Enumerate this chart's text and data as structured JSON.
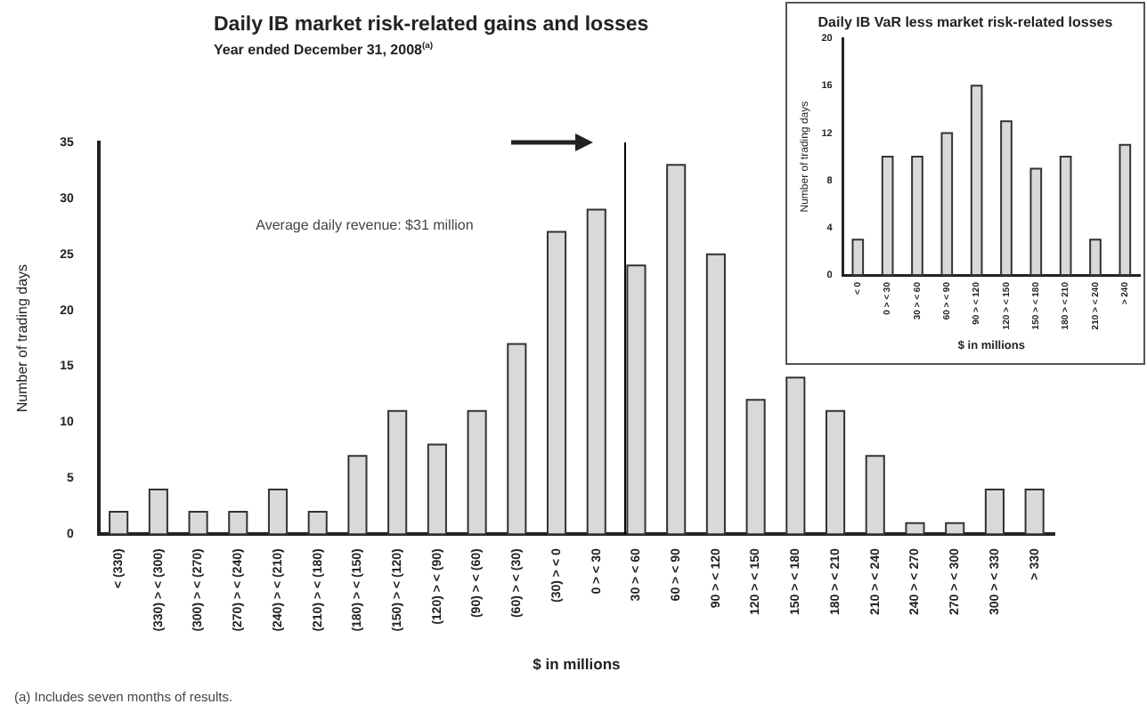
{
  "chart_data": [
    {
      "type": "bar",
      "title": "Daily IB market risk-related gains and losses",
      "subtitle": "Year ended December 31, 2008$^{(a)}$",
      "xlabel": "$ in millions",
      "ylabel": "Number of trading days",
      "categories": [
        "< (330)",
        "(330) > < (300)",
        "(300) > < (270)",
        "(270) > < (240)",
        "(240) > < (210)",
        "(210) > < (180)",
        "(180) > < (150)",
        "(150) > < (120)",
        "(120) > < (90)",
        "(90) > < (60)",
        "(60) > < (30)",
        "(30) > < 0",
        "0 > < 30",
        "30 > < 60",
        "60 > < 90",
        "90 > < 120",
        "120 > < 150",
        "150 > < 180",
        "180 > < 210",
        "210 > < 240",
        "240 > < 270",
        "270 > < 300",
        "300 > < 330",
        "> 330"
      ],
      "values": [
        2,
        4,
        2,
        2,
        4,
        2,
        7,
        11,
        8,
        11,
        17,
        27,
        29,
        24,
        33,
        25,
        12,
        14,
        11,
        7,
        1,
        1,
        4,
        4
      ],
      "color": "#d9d9d9",
      "ylim": [
        0,
        35
      ],
      "yticks": [
        0,
        5,
        10,
        15,
        20,
        25,
        30,
        35
      ],
      "grid": false,
      "legend": false,
      "ref_lines": [
        {
          "axis": "x",
          "value": "30 > < 60",
          "color": "#000000"
        }
      ],
      "annotations": [
        "Average daily revenue: $31 million",
        "(a) Includes seven months of results."
      ]
    },
    {
      "type": "bar",
      "title": "Daily IB VaR less market risk-related losses",
      "xlabel": "$ in millions",
      "ylabel": "Number of trading days",
      "categories": [
        "< 0",
        "0 > < 30",
        "30 > < 60",
        "60 > < 90",
        "90 > < 120",
        "120 > < 150",
        "150 > < 180",
        "180 > < 210",
        "210 > < 240",
        "> 240"
      ],
      "values": [
        3,
        10,
        10,
        12,
        16,
        13,
        9,
        10,
        3,
        11
      ],
      "color": "#d9d9d9",
      "ylim": [
        0,
        20
      ],
      "yticks": [
        0,
        4,
        8,
        12,
        16,
        20
      ],
      "grid": false,
      "legend": false
    }
  ]
}
